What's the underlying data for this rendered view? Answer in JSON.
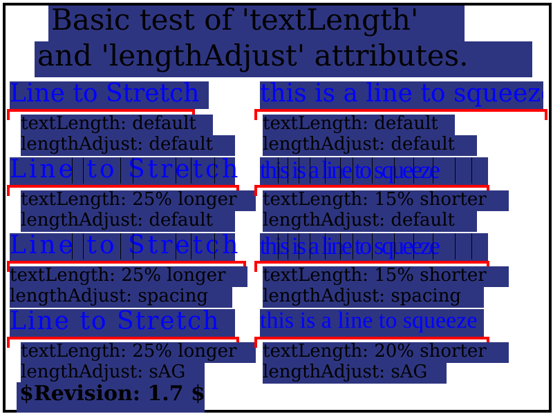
{
  "title": {
    "line1": "Basic test of 'textLength'",
    "line2": "and 'lengthAdjust' attributes."
  },
  "left": {
    "text": "Line to Stretch",
    "rows": [
      {
        "label1": "textLength: default",
        "label2": "lengthAdjust: default"
      },
      {
        "label1": "textLength: 25% longer",
        "label2": "lengthAdjust: default"
      },
      {
        "label1": "textLength: 25% longer",
        "label2": "lengthAdjust: spacing"
      },
      {
        "label1": "textLength: 25% longer",
        "label2": "lengthAdjust: sAG"
      }
    ]
  },
  "right": {
    "text": "this is a line to squeeze",
    "rows": [
      {
        "label1": "textLength: default",
        "label2": "lengthAdjust: default"
      },
      {
        "label1": "textLength: 15% shorter",
        "label2": "lengthAdjust: default"
      },
      {
        "label1": "textLength: 15% shorter",
        "label2": "lengthAdjust: spacing"
      },
      {
        "label1": "textLength: 20% shorter",
        "label2": "lengthAdjust: sAG"
      }
    ]
  },
  "revision": "$Revision: 1.7 $",
  "colors": {
    "highlight": "#2e3580",
    "test_text": "#0000ff",
    "bracket": "#ff0000",
    "label_text": "#000000",
    "border": "#000000"
  }
}
